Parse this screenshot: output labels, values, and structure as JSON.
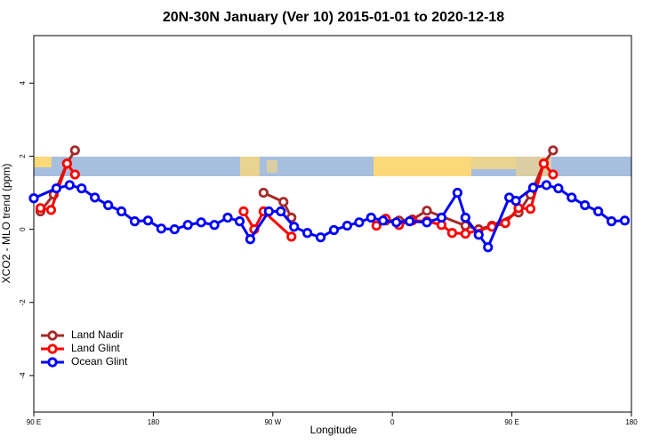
{
  "chart_data": {
    "type": "line",
    "title": "20N-30N January (Ver 10)   2015-01-01 to 2020-12-18",
    "xlabel": "Longitude",
    "ylabel": "XCO2 - MLO trend (ppm)",
    "xlim": [
      90,
      540
    ],
    "ylim": [
      -5.0,
      5.3
    ],
    "xticks": [
      {
        "value": 90,
        "label": "90 E"
      },
      180,
      {
        "value": 270,
        "label": "90 W"
      },
      {
        "value": 360,
        "label": "0"
      },
      {
        "value": 450,
        "label": "90 E"
      },
      {
        "value": 540,
        "label": "180"
      }
    ],
    "yticks": [
      -4,
      -2,
      0,
      2,
      4
    ],
    "legend": "bottom-left",
    "series": [
      {
        "name": "Land Nadir",
        "color": "#a52a2a",
        "x": [
          95,
          105,
          115,
          121,
          null,
          263,
          278,
          284,
          null,
          355,
          365,
          375,
          386,
          415,
          425,
          435,
          455,
          464,
          474,
          481
        ],
        "values": [
          0.49,
          0.95,
          1.8,
          2.16,
          null,
          1.0,
          0.75,
          0.32,
          null,
          0.24,
          0.24,
          0.27,
          0.51,
          0.1,
          0.0,
          0.1,
          0.46,
          0.95,
          1.8,
          2.16
        ]
      },
      {
        "name": "Land Glint",
        "color": "#ff0000",
        "x": [
          95,
          103,
          115,
          121,
          null,
          248,
          256,
          263,
          284,
          null,
          348,
          355,
          365,
          375,
          386,
          397,
          405,
          415,
          435,
          445,
          455,
          464,
          474,
          481
        ],
        "values": [
          0.58,
          0.53,
          1.8,
          1.5,
          null,
          0.49,
          0.0,
          0.49,
          -0.2,
          null,
          0.1,
          0.29,
          0.12,
          0.24,
          0.22,
          0.12,
          -0.1,
          -0.12,
          0.07,
          0.17,
          0.58,
          0.56,
          1.8,
          1.5
        ]
      },
      {
        "name": "Ocean Glint",
        "color": "#0000ff",
        "x": [
          90,
          107,
          117,
          126,
          136,
          146,
          156,
          166,
          176,
          186,
          196,
          206,
          216,
          226,
          236,
          245,
          253,
          267,
          276,
          286,
          296,
          306,
          316,
          326,
          335,
          344,
          353,
          363,
          373,
          386,
          397,
          409,
          415,
          425,
          432,
          448,
          453,
          466,
          476,
          485,
          495,
          505,
          515,
          525,
          535
        ],
        "values": [
          0.85,
          1.12,
          1.21,
          1.12,
          0.87,
          0.66,
          0.49,
          0.22,
          0.24,
          0.02,
          0.0,
          0.12,
          0.19,
          0.12,
          0.32,
          0.22,
          -0.27,
          0.49,
          0.49,
          0.07,
          -0.1,
          -0.22,
          -0.02,
          0.1,
          0.19,
          0.32,
          0.24,
          0.19,
          0.22,
          0.19,
          0.32,
          1.0,
          0.32,
          -0.15,
          -0.49,
          0.87,
          0.78,
          1.14,
          1.21,
          1.12,
          0.87,
          0.66,
          0.49,
          0.22,
          0.24
        ]
      }
    ]
  }
}
